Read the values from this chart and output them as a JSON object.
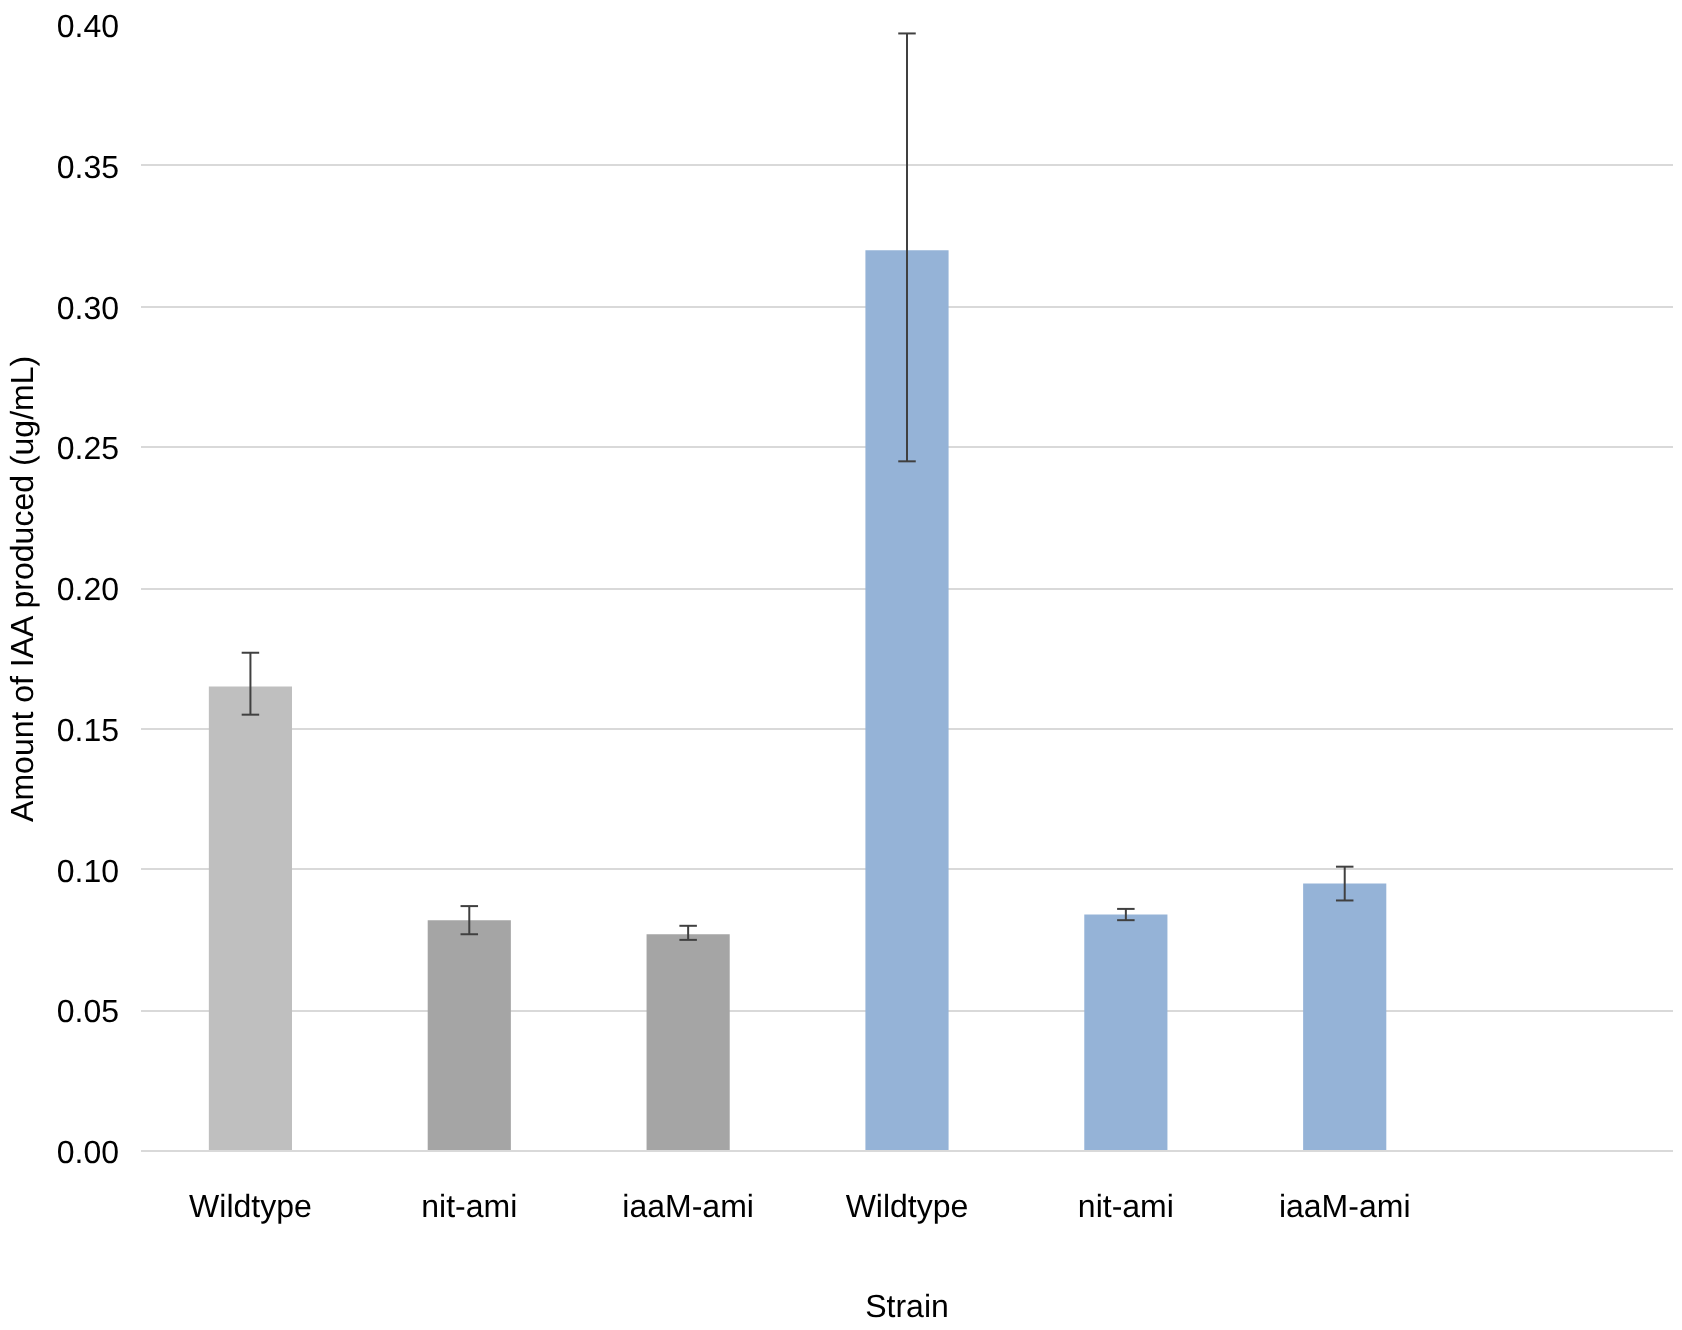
{
  "chart_data": {
    "type": "bar",
    "xlabel": "Strain",
    "ylabel": "Amount of IAA produced (ug/mL)",
    "categories": [
      "Wildtype",
      "nit-ami",
      "iaaM-ami",
      "Wildtype",
      "nit-ami",
      "iaaM-ami",
      null
    ],
    "values": [
      0.165,
      0.082,
      0.077,
      0.32,
      0.084,
      0.095,
      null
    ],
    "colors": [
      "#bfbfbf",
      "#a5a5a5",
      "#a5a5a5",
      "#95b3d7",
      "#95b3d7",
      "#95b3d7",
      "#95b3d7"
    ],
    "errors": [
      [
        0.155,
        0.177
      ],
      [
        0.077,
        0.087
      ],
      [
        0.075,
        0.08
      ],
      [
        0.245,
        0.397
      ],
      [
        0.082,
        0.086
      ],
      [
        0.089,
        0.101
      ],
      null
    ],
    "ylim": [
      0,
      0.4
    ],
    "yticks": [
      {
        "value": 0,
        "label": "0.00"
      },
      {
        "value": 0.05,
        "label": "0.05"
      },
      {
        "value": 0.1,
        "label": "0.10"
      },
      {
        "value": 0.15,
        "label": "0.15"
      },
      {
        "value": 0.2,
        "label": "0.20"
      },
      {
        "value": 0.25,
        "label": "0.25"
      },
      {
        "value": 0.3,
        "label": "0.30"
      },
      {
        "value": 0.35,
        "label": "0.35"
      },
      {
        "value": 0.4,
        "label": "0.40"
      }
    ],
    "grid": "y"
  }
}
